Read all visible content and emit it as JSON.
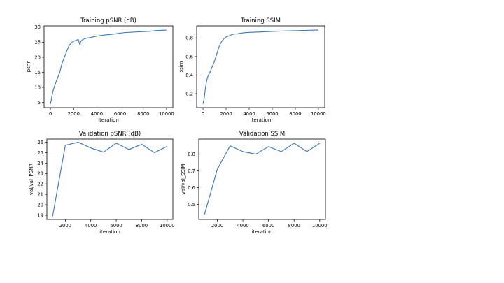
{
  "chart_data": [
    {
      "id": "training-psnr",
      "type": "line",
      "title": "Training pSNR (dB)",
      "xlabel": "iteration",
      "ylabel": "psnr",
      "xlim": [
        -550,
        10550
      ],
      "ylim": [
        3.3,
        30.4
      ],
      "xticks": [
        0,
        2000,
        4000,
        6000,
        8000,
        10000
      ],
      "yticks": [
        5,
        10,
        15,
        20,
        25,
        30
      ],
      "grid": false,
      "series": [
        {
          "color": "#3b75af",
          "x": [
            0,
            100,
            200,
            300,
            400,
            500,
            600,
            700,
            800,
            900,
            1000,
            1200,
            1400,
            1600,
            1800,
            2000,
            2200,
            2400,
            2500,
            2550,
            2600,
            2700,
            2800,
            3000,
            3500,
            4000,
            4500,
            5000,
            5500,
            6000,
            6500,
            7000,
            7500,
            8000,
            8500,
            9000,
            9500,
            10000
          ],
          "y": [
            4.5,
            6.5,
            8.5,
            9.8,
            11.0,
            12.0,
            13.0,
            14.0,
            15.0,
            16.5,
            18.0,
            20.0,
            22.0,
            23.8,
            24.8,
            25.3,
            25.6,
            25.9,
            24.5,
            24.0,
            25.2,
            25.6,
            25.9,
            26.2,
            26.6,
            27.0,
            27.3,
            27.5,
            27.7,
            28.0,
            28.2,
            28.3,
            28.4,
            28.5,
            28.6,
            28.8,
            28.9,
            29.0
          ]
        }
      ]
    },
    {
      "id": "training-ssim",
      "type": "line",
      "title": "Training SSIM",
      "xlabel": "iteration",
      "ylabel": "ssim",
      "xlim": [
        -550,
        10550
      ],
      "ylim": [
        0.05,
        0.93
      ],
      "xticks": [
        0,
        2000,
        4000,
        6000,
        8000,
        10000
      ],
      "yticks": [
        0.2,
        0.4,
        0.6,
        0.8
      ],
      "grid": false,
      "series": [
        {
          "color": "#3b75af",
          "x": [
            0,
            100,
            200,
            300,
            400,
            600,
            800,
            1000,
            1200,
            1400,
            1600,
            1800,
            2000,
            2200,
            2400,
            2600,
            3000,
            3500,
            4000,
            5000,
            6000,
            7000,
            8000,
            9000,
            10000
          ],
          "y": [
            0.09,
            0.15,
            0.25,
            0.33,
            0.38,
            0.43,
            0.49,
            0.55,
            0.63,
            0.71,
            0.76,
            0.79,
            0.81,
            0.82,
            0.83,
            0.84,
            0.845,
            0.855,
            0.86,
            0.865,
            0.87,
            0.875,
            0.878,
            0.882,
            0.885
          ]
        }
      ]
    },
    {
      "id": "validation-psnr",
      "type": "line",
      "title": "Validation pSNR (dB)",
      "xlabel": "iteration",
      "ylabel": "val/val_PSNR",
      "xlim": [
        550,
        10450
      ],
      "ylim": [
        18.6,
        26.3
      ],
      "xticks": [
        2000,
        4000,
        6000,
        8000,
        10000
      ],
      "yticks": [
        19,
        20,
        21,
        22,
        23,
        24,
        25,
        26
      ],
      "grid": false,
      "series": [
        {
          "color": "#3b75af",
          "x": [
            1000,
            2000,
            3000,
            4000,
            5000,
            6000,
            7000,
            8000,
            9000,
            10000
          ],
          "y": [
            18.9,
            25.7,
            26.0,
            25.45,
            25.05,
            25.9,
            25.3,
            25.8,
            25.0,
            25.6
          ]
        }
      ]
    },
    {
      "id": "validation-ssim",
      "type": "line",
      "title": "Validation SSIM",
      "xlabel": "iteration",
      "ylabel": "val/val_SSIM",
      "xlim": [
        550,
        10450
      ],
      "ylim": [
        0.41,
        0.89
      ],
      "xticks": [
        2000,
        4000,
        6000,
        8000,
        10000
      ],
      "yticks": [
        0.5,
        0.6,
        0.7,
        0.8
      ],
      "grid": false,
      "series": [
        {
          "color": "#3b75af",
          "x": [
            1000,
            2000,
            3000,
            4000,
            5000,
            6000,
            7000,
            8000,
            9000,
            10000
          ],
          "y": [
            0.44,
            0.71,
            0.85,
            0.815,
            0.8,
            0.845,
            0.815,
            0.865,
            0.815,
            0.865
          ]
        }
      ]
    }
  ]
}
